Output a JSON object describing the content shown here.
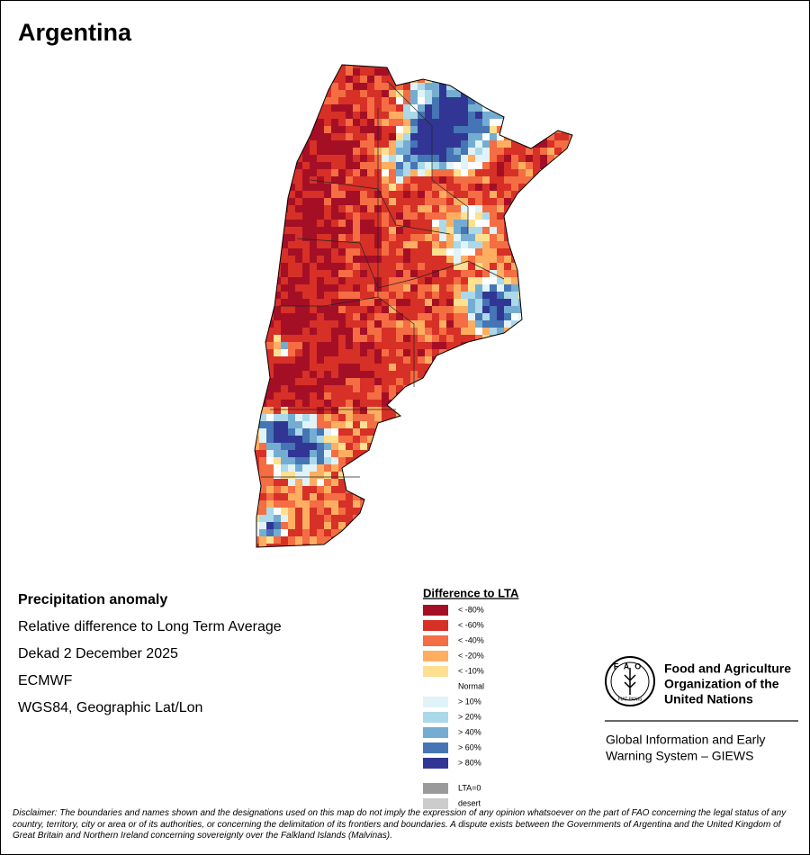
{
  "title": "Argentina",
  "info": {
    "heading": "Precipitation anomaly",
    "lines": [
      "Relative difference to Long Term Average",
      "Dekad 2 December 2025",
      "ECMWF",
      "WGS84, Geographic Lat/Lon"
    ]
  },
  "legend": {
    "title": "Difference to LTA",
    "items": [
      {
        "label": "< -80%",
        "color": "#a50f26"
      },
      {
        "label": "< -60%",
        "color": "#d73027"
      },
      {
        "label": "< -40%",
        "color": "#f46d43"
      },
      {
        "label": "< -20%",
        "color": "#fdae61"
      },
      {
        "label": "< -10%",
        "color": "#fee090"
      },
      {
        "label": "Normal",
        "color": "#ffffff"
      },
      {
        "label": "> 10%",
        "color": "#e0f3f8"
      },
      {
        "label": "> 20%",
        "color": "#abd9e9"
      },
      {
        "label": "> 40%",
        "color": "#74add1"
      },
      {
        "label": "> 60%",
        "color": "#4575b4"
      },
      {
        "label": "> 80%",
        "color": "#313695"
      }
    ],
    "extra_items": [
      {
        "label": "LTA=0",
        "color": "#9a9a9a"
      },
      {
        "label": "desert",
        "color": "#cccccc"
      }
    ]
  },
  "logo": {
    "acronym": "FAO",
    "motto": "FIAT PANIS",
    "org_lines": [
      "Food and Agriculture",
      "Organization of the",
      "United Nations"
    ],
    "system_lines": [
      "Global Information and Early",
      "Warning System – GIEWS"
    ]
  },
  "disclaimer": "Disclaimer: The boundaries and names shown and the designations used on this map do not imply the expression of any opinion whatsoever on the part of FAO concerning the legal status of any country, territory, city or area or of its authorities, or concerning the delimitation of its frontiers and boundaries. A dispute exists between the Governments of Argentina and the United Kingdom of Great Britain and Northern Ireland concerning sovereignty over the Falkland Islands (Malvinas)."
}
